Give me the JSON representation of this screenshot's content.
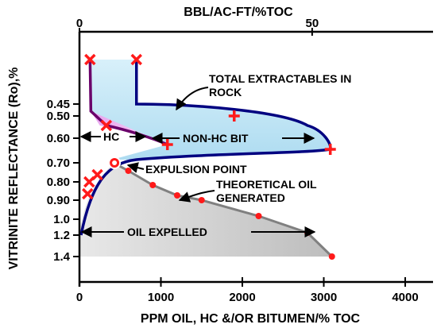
{
  "chart_data": {
    "type": "area",
    "title": "",
    "xlabel_bottom": "PPM OIL, HC &/OR BITUMEN/% TOC",
    "xlabel_top": "BBL/AC-FT/%TOC",
    "ylabel": "VITRINITE  REFLECTANCE  (Ro),%",
    "x_bottom": {
      "range": [
        0,
        4000
      ],
      "ticks": [
        "0",
        "1000",
        "2000",
        "3000",
        "4000"
      ]
    },
    "x_top": {
      "range": [
        0,
        70
      ],
      "ticks": [
        "0",
        "50"
      ]
    },
    "y": {
      "ticks": [
        "0.45",
        "0.50",
        "0.60",
        "0.70",
        "0.80",
        "0.90",
        "1.0",
        "1.2",
        "1.4"
      ]
    },
    "series": [
      {
        "name": "TOTAL EXTRACTABLES IN ROCK",
        "color": "#000080",
        "fill": "#bfe6f5",
        "x": [
          700,
          700,
          700,
          1900,
          2800,
          3080,
          2600,
          1500,
          600
        ],
        "y": [
          "top",
          "top",
          "0.45",
          "0.50",
          "0.55",
          "0.63",
          "0.66",
          "0.67",
          "0.70"
        ]
      },
      {
        "name": "HC",
        "color": "#6a006a",
        "fill": "#f7b3f0",
        "x": [
          130,
          140,
          140,
          250,
          600,
          1080,
          700,
          400,
          150,
          120
        ],
        "y": [
          "top",
          "0.25",
          "0.48",
          "0.55",
          "0.58",
          "0.62",
          "0.67",
          "0.69",
          "0.74",
          "0.80"
        ]
      },
      {
        "name": "THEORETICAL OIL GENERATED",
        "color": "#808080",
        "fill": "#cccccc",
        "x": [
          420,
          600,
          900,
          1200,
          1500,
          2200,
          2800,
          3100
        ],
        "y": [
          "0.70",
          "0.74",
          "0.81",
          "0.86",
          "0.90",
          "0.97",
          "1.12",
          "1.4"
        ]
      }
    ],
    "markers": [
      {
        "x": 130,
        "y": "top",
        "shape": "x"
      },
      {
        "x": 700,
        "y": "top",
        "shape": "x"
      },
      {
        "x": 1900,
        "y": "0.50",
        "shape": "plus"
      },
      {
        "x": 3080,
        "y": "0.63",
        "shape": "plus"
      },
      {
        "x": 1080,
        "y": "0.62",
        "shape": "plus"
      },
      {
        "x": 330,
        "y": "0.55",
        "shape": "x"
      },
      {
        "x": 120,
        "y": "0.80",
        "shape": "x"
      },
      {
        "x": 220,
        "y": "0.77",
        "shape": "x"
      },
      {
        "x": 100,
        "y": "0.87",
        "shape": "x"
      },
      {
        "x": 430,
        "y": "0.70",
        "shape": "ring"
      }
    ],
    "annotations": {
      "total_extractables": "TOTAL EXTRACTABLES IN\nROCK",
      "hc": "HC",
      "non_hc_bit": "NON-HC BIT",
      "expulsion_point": "EXPULSION POINT",
      "theoretical_oil": "THEORETICAL OIL\nGENERATED",
      "oil_expelled": "OIL EXPELLED"
    },
    "grid": false,
    "legend": "none"
  }
}
